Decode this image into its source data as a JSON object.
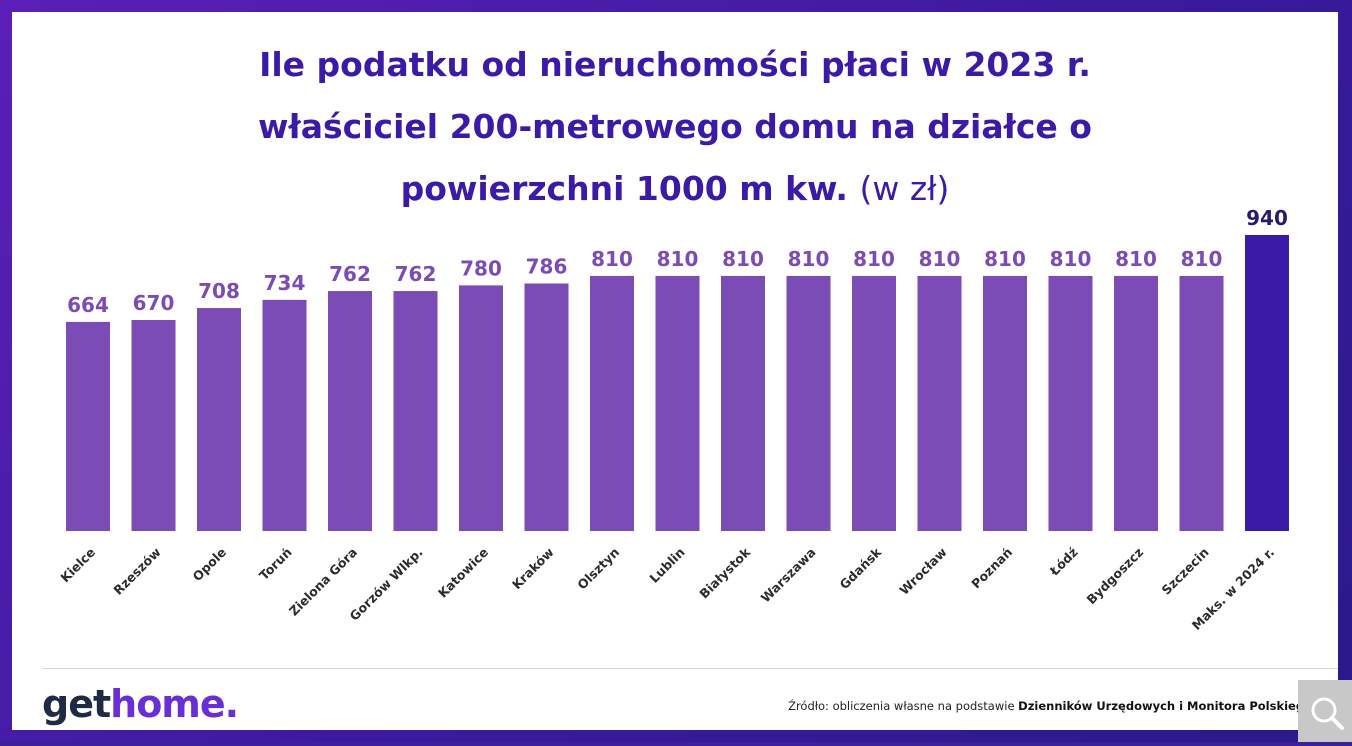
{
  "title_line1": "Ile podatku od nieruchomości płaci w 2023 r.",
  "title_line2": "właściciel 200-metrowego domu na działce o",
  "title_line3": "powierzchni 1000 m kw.",
  "title_unit": "(w zł)",
  "logo_part1": "get",
  "logo_part2": "home.",
  "source_prefix": "Źródło: obliczenia własne na podstawie ",
  "source_bold": "Dzienników Urzędowych i Monitora Polskiego",
  "colors": {
    "bar": "#7b4bb6",
    "bar_highlight": "#3a1aa6",
    "label": "#7b4bb6",
    "label_highlight": "#2a1a6e",
    "title": "#3a1aa6"
  },
  "chart_data": {
    "type": "bar",
    "categories": [
      "Kielce",
      "Rzeszów",
      "Opole",
      "Toruń",
      "Zielona Góra",
      "Gorzów Wlkp.",
      "Katowice",
      "Kraków",
      "Olsztyn",
      "Lublin",
      "Białystok",
      "Warszawa",
      "Gdańsk",
      "Wrocław",
      "Poznań",
      "Łódź",
      "Bydgoszcz",
      "Szczecin",
      "Maks. w 2024 r."
    ],
    "values": [
      664,
      670,
      708,
      734,
      762,
      762,
      780,
      786,
      810,
      810,
      810,
      810,
      810,
      810,
      810,
      810,
      810,
      810,
      940
    ],
    "highlight_index": 18,
    "ylim": [
      0,
      940
    ],
    "grid": false,
    "data_labels": true
  }
}
